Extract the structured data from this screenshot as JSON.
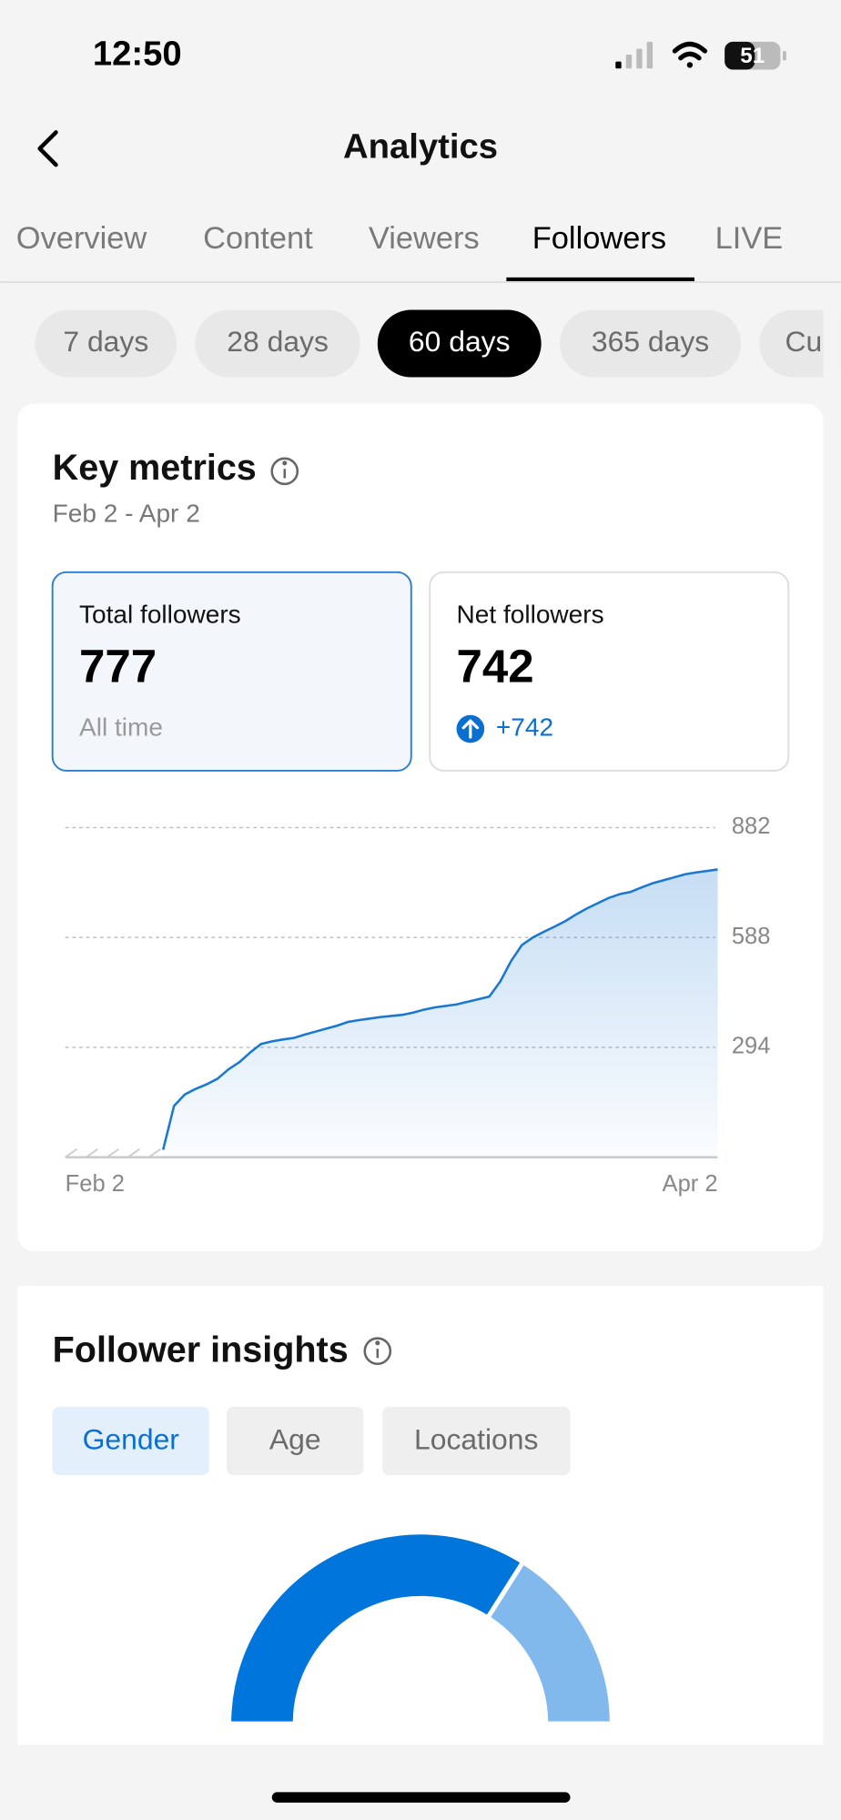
{
  "status_bar": {
    "time": "12:50",
    "battery": "51"
  },
  "header": {
    "title": "Analytics"
  },
  "tabs": {
    "items": [
      "Overview",
      "Content",
      "Viewers",
      "Followers",
      "LIVE"
    ],
    "selected": 3
  },
  "ranges": {
    "items": [
      "7 days",
      "28 days",
      "60 days",
      "365 days",
      "Cu"
    ],
    "selected": 2
  },
  "key_metrics": {
    "title": "Key metrics",
    "date_range": "Feb 2 - Apr 2",
    "cards": [
      {
        "label": "Total followers",
        "value": 777,
        "note": "All time"
      },
      {
        "label": "Net followers",
        "value": 742,
        "change": "+742"
      }
    ],
    "chart": {
      "type": "line",
      "categories": [
        "Feb 2",
        null,
        null,
        null,
        null,
        null,
        null,
        null,
        null,
        null,
        null,
        null,
        null,
        null,
        null,
        null,
        null,
        null,
        null,
        null,
        null,
        null,
        null,
        null,
        null,
        null,
        null,
        null,
        null,
        null,
        null,
        null,
        null,
        null,
        null,
        null,
        null,
        null,
        null,
        null,
        null,
        null,
        null,
        null,
        null,
        null,
        null,
        null,
        null,
        null,
        null,
        null,
        null,
        null,
        null,
        null,
        null,
        null,
        null,
        null,
        "Apr 2"
      ],
      "values": [
        null,
        null,
        null,
        null,
        null,
        null,
        null,
        null,
        null,
        20,
        137,
        168,
        183,
        195,
        210,
        235,
        254,
        280,
        303,
        310,
        315,
        319,
        328,
        336,
        344,
        352,
        362,
        367,
        371,
        375,
        378,
        381,
        387,
        395,
        401,
        405,
        409,
        416,
        423,
        430,
        470,
        525,
        568,
        588,
        603,
        617,
        632,
        650,
        666,
        680,
        694,
        704,
        710,
        722,
        733,
        741,
        749,
        757,
        762,
        766,
        770
      ],
      "color": "#1a78d2",
      "ylim": [
        0,
        882
      ],
      "yticks": [
        294,
        588,
        882
      ],
      "grid": true
    }
  },
  "follower_insights": {
    "title": "Follower insights",
    "tabs": [
      "Gender",
      "Age",
      "Locations"
    ],
    "selected": 0,
    "chart": {
      "type": "pie",
      "values": [
        68,
        32
      ],
      "colors": [
        "#0075db",
        "#82b9ec"
      ]
    }
  }
}
